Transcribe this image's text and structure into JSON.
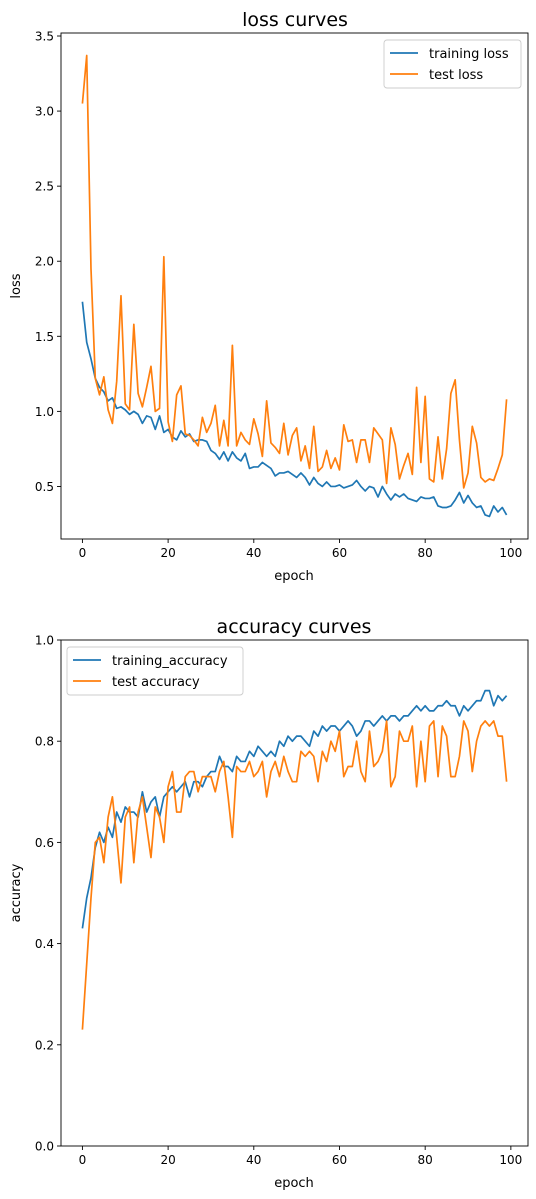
{
  "chart_data": [
    {
      "type": "line",
      "title": "loss curves",
      "xlabel": "epoch",
      "ylabel": "loss",
      "xlim": [
        -5,
        104
      ],
      "ylim": [
        0.15,
        3.52
      ],
      "xticks": [
        0,
        20,
        40,
        60,
        80,
        100
      ],
      "xtick_labels": [
        "0",
        "20",
        "40",
        "60",
        "80",
        "100"
      ],
      "yticks": [
        0.5,
        1.0,
        1.5,
        2.0,
        2.5,
        3.0,
        3.5
      ],
      "ytick_labels": [
        "0.5",
        "1.0",
        "1.5",
        "2.0",
        "2.5",
        "3.0",
        "3.5"
      ],
      "legend_position": "top-right",
      "grid": false,
      "series": [
        {
          "name": "training loss",
          "color": "#1f77b4",
          "values": [
            1.73,
            1.46,
            1.35,
            1.22,
            1.16,
            1.13,
            1.07,
            1.09,
            1.02,
            1.03,
            1.01,
            0.98,
            1.0,
            0.98,
            0.92,
            0.97,
            0.96,
            0.88,
            0.97,
            0.86,
            0.88,
            0.83,
            0.81,
            0.87,
            0.83,
            0.85,
            0.8,
            0.81,
            0.81,
            0.8,
            0.74,
            0.72,
            0.68,
            0.73,
            0.67,
            0.73,
            0.69,
            0.67,
            0.72,
            0.62,
            0.63,
            0.63,
            0.66,
            0.64,
            0.62,
            0.57,
            0.59,
            0.59,
            0.6,
            0.58,
            0.56,
            0.59,
            0.56,
            0.51,
            0.56,
            0.52,
            0.5,
            0.53,
            0.5,
            0.5,
            0.51,
            0.49,
            0.5,
            0.51,
            0.54,
            0.5,
            0.47,
            0.5,
            0.49,
            0.43,
            0.5,
            0.45,
            0.41,
            0.45,
            0.43,
            0.45,
            0.42,
            0.41,
            0.4,
            0.43,
            0.42,
            0.42,
            0.43,
            0.37,
            0.36,
            0.36,
            0.37,
            0.41,
            0.46,
            0.39,
            0.44,
            0.39,
            0.36,
            0.37,
            0.31,
            0.3,
            0.37,
            0.33,
            0.36,
            0.31
          ]
        },
        {
          "name": "test loss",
          "color": "#ff7f0e",
          "values": [
            3.05,
            3.37,
            1.95,
            1.22,
            1.11,
            1.23,
            1.01,
            0.92,
            1.2,
            1.77,
            1.05,
            1.01,
            1.58,
            1.12,
            1.03,
            1.16,
            1.3,
            1.0,
            1.02,
            2.03,
            0.93,
            0.8,
            1.11,
            1.17,
            0.85,
            0.84,
            0.81,
            0.77,
            0.96,
            0.86,
            0.92,
            1.04,
            0.77,
            0.94,
            0.77,
            1.44,
            0.77,
            0.86,
            0.81,
            0.78,
            0.95,
            0.85,
            0.7,
            1.07,
            0.79,
            0.76,
            0.72,
            0.92,
            0.71,
            0.84,
            0.89,
            0.67,
            0.77,
            0.62,
            0.9,
            0.6,
            0.63,
            0.74,
            0.62,
            0.69,
            0.61,
            0.91,
            0.8,
            0.81,
            0.66,
            0.81,
            0.81,
            0.66,
            0.89,
            0.85,
            0.81,
            0.52,
            0.89,
            0.78,
            0.55,
            0.64,
            0.72,
            0.58,
            1.16,
            0.66,
            1.1,
            0.55,
            0.53,
            0.83,
            0.55,
            0.75,
            1.12,
            1.21,
            0.81,
            0.49,
            0.59,
            0.9,
            0.79,
            0.56,
            0.53,
            0.55,
            0.54,
            0.62,
            0.71,
            1.08
          ]
        }
      ]
    },
    {
      "type": "line",
      "title": "accuracy curves",
      "xlabel": "epoch",
      "ylabel": "accuracy",
      "xlim": [
        -5,
        104
      ],
      "ylim": [
        0.0,
        1.0
      ],
      "xticks": [
        0,
        20,
        40,
        60,
        80,
        100
      ],
      "xtick_labels": [
        "0",
        "20",
        "40",
        "60",
        "80",
        "100"
      ],
      "yticks": [
        0.0,
        0.2,
        0.4,
        0.6,
        0.8,
        1.0
      ],
      "ytick_labels": [
        "0.0",
        "0.2",
        "0.4",
        "0.6",
        "0.8",
        "1.0"
      ],
      "legend_position": "top-left",
      "grid": false,
      "series": [
        {
          "name": "training_accuracy",
          "color": "#1f77b4",
          "values": [
            0.43,
            0.49,
            0.53,
            0.59,
            0.62,
            0.6,
            0.63,
            0.61,
            0.66,
            0.64,
            0.67,
            0.66,
            0.66,
            0.65,
            0.7,
            0.66,
            0.68,
            0.69,
            0.65,
            0.69,
            0.7,
            0.71,
            0.7,
            0.71,
            0.72,
            0.69,
            0.72,
            0.72,
            0.71,
            0.73,
            0.74,
            0.74,
            0.77,
            0.75,
            0.75,
            0.74,
            0.77,
            0.76,
            0.76,
            0.78,
            0.77,
            0.79,
            0.78,
            0.77,
            0.78,
            0.77,
            0.8,
            0.79,
            0.81,
            0.8,
            0.81,
            0.81,
            0.8,
            0.79,
            0.82,
            0.81,
            0.83,
            0.82,
            0.83,
            0.83,
            0.82,
            0.83,
            0.84,
            0.83,
            0.81,
            0.82,
            0.84,
            0.84,
            0.83,
            0.84,
            0.85,
            0.84,
            0.85,
            0.85,
            0.84,
            0.85,
            0.85,
            0.86,
            0.87,
            0.86,
            0.87,
            0.86,
            0.86,
            0.87,
            0.87,
            0.88,
            0.87,
            0.87,
            0.85,
            0.87,
            0.86,
            0.87,
            0.88,
            0.88,
            0.9,
            0.9,
            0.87,
            0.89,
            0.88,
            0.89
          ]
        },
        {
          "name": "test accuracy",
          "color": "#ff7f0e",
          "values": [
            0.23,
            0.36,
            0.49,
            0.6,
            0.61,
            0.56,
            0.65,
            0.69,
            0.61,
            0.52,
            0.65,
            0.67,
            0.56,
            0.66,
            0.69,
            0.63,
            0.57,
            0.67,
            0.65,
            0.6,
            0.71,
            0.74,
            0.66,
            0.66,
            0.73,
            0.74,
            0.74,
            0.7,
            0.73,
            0.73,
            0.73,
            0.7,
            0.74,
            0.76,
            0.69,
            0.61,
            0.75,
            0.74,
            0.74,
            0.76,
            0.73,
            0.74,
            0.76,
            0.69,
            0.74,
            0.76,
            0.73,
            0.77,
            0.74,
            0.72,
            0.72,
            0.78,
            0.77,
            0.78,
            0.77,
            0.72,
            0.78,
            0.76,
            0.8,
            0.78,
            0.82,
            0.73,
            0.75,
            0.75,
            0.8,
            0.74,
            0.72,
            0.82,
            0.75,
            0.76,
            0.78,
            0.84,
            0.71,
            0.73,
            0.82,
            0.8,
            0.8,
            0.83,
            0.71,
            0.8,
            0.72,
            0.83,
            0.84,
            0.73,
            0.83,
            0.81,
            0.73,
            0.73,
            0.77,
            0.84,
            0.82,
            0.74,
            0.8,
            0.83,
            0.84,
            0.83,
            0.84,
            0.81,
            0.81,
            0.72
          ]
        }
      ]
    }
  ]
}
